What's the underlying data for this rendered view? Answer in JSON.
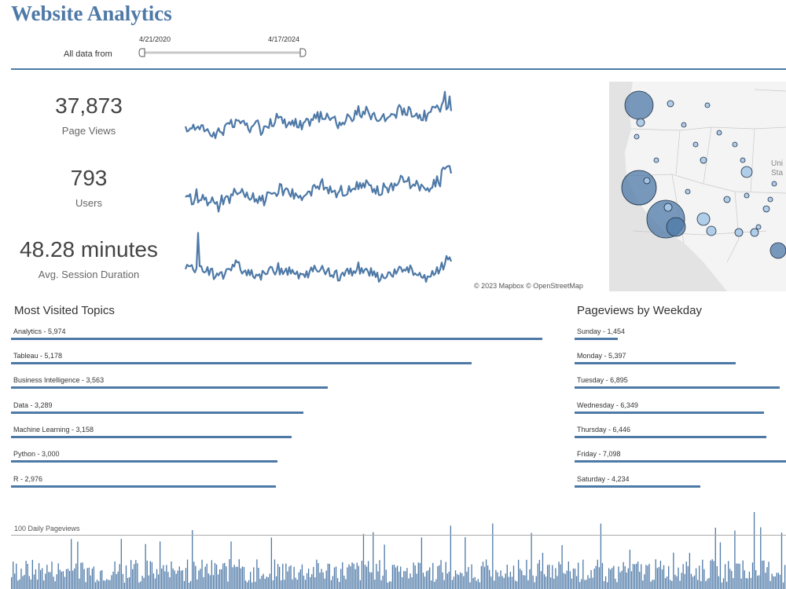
{
  "title": "Website Analytics",
  "filter": {
    "label": "All data from",
    "start": "4/21/2020",
    "end": "4/17/2024"
  },
  "kpis": [
    {
      "value": "37,873",
      "label": "Page Views"
    },
    {
      "value": "793",
      "label": "Users"
    },
    {
      "value": "48.28 minutes",
      "label": "Avg. Session Duration"
    }
  ],
  "map": {
    "attribution": "© 2023 Mapbox  © OpenStreetMap",
    "region_label_1": "Uni",
    "region_label_2": "Sta"
  },
  "topics": {
    "title": "Most Visited Topics",
    "max": 5974,
    "items": [
      {
        "label": "Analytics - 5,974",
        "value": 5974
      },
      {
        "label": "Tableau - 5,178",
        "value": 5178
      },
      {
        "label": "Business Intelligence - 3,563",
        "value": 3563
      },
      {
        "label": "Data - 3,289",
        "value": 3289
      },
      {
        "label": "Machine Learning - 3,158",
        "value": 3158
      },
      {
        "label": "Python - 3,000",
        "value": 3000
      },
      {
        "label": "R - 2,976",
        "value": 2976
      }
    ]
  },
  "weekdays": {
    "title": "Pageviews by Weekday",
    "max": 7098,
    "items": [
      {
        "label": "Sunday - 1,454",
        "value": 1454
      },
      {
        "label": "Monday - 5,397",
        "value": 5397
      },
      {
        "label": "Tuesday - 6,895",
        "value": 6895
      },
      {
        "label": "Wednesday - 6,349",
        "value": 6349
      },
      {
        "label": "Thursday - 6,446",
        "value": 6446
      },
      {
        "label": "Friday - 7,098",
        "value": 7098
      },
      {
        "label": "Saturday - 4,234",
        "value": 4234
      }
    ]
  },
  "daily": {
    "reference_label": "100 Daily Pageviews",
    "reference_value": 100
  },
  "colors": {
    "accent": "#4e79a7",
    "map_bubble": "#a9c9e8"
  }
}
